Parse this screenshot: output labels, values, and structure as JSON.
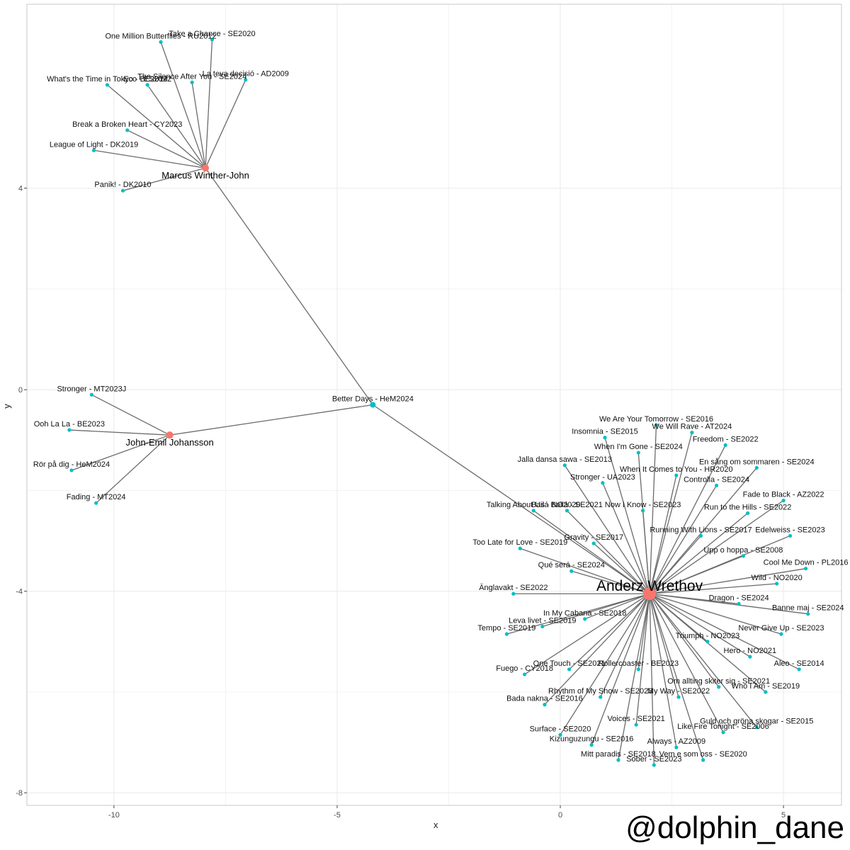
{
  "chart_data": {
    "type": "scatter",
    "xlabel": "x",
    "ylabel": "y",
    "xlim": [
      -11.95,
      6.3
    ],
    "ylim": [
      -8.25,
      7.65
    ],
    "xticks": [
      -10,
      -5,
      0,
      5
    ],
    "yticks": [
      -8,
      -4,
      0,
      4
    ],
    "xtick_labels": [
      "-10",
      "-5",
      "0",
      "5"
    ],
    "ytick_labels": [
      "-8",
      "-4",
      "0",
      "4"
    ],
    "grid": true,
    "colors": {
      "artist": "#f8766d",
      "song": "#00bfc4",
      "edge": "#6b6b6b",
      "grid": "#ebebeb",
      "frame": "#c8c8c8"
    },
    "artists": [
      {
        "id": "marcus",
        "label": "Marcus Winther-John",
        "x": -7.95,
        "y": 4.4,
        "size": "medium"
      },
      {
        "id": "john",
        "label": "John-Emil Johansson",
        "x": -8.75,
        "y": -0.9,
        "size": "medium"
      },
      {
        "id": "anderz",
        "label": "Anderz Wrethov",
        "x": 2.0,
        "y": -4.05,
        "size": "large"
      }
    ],
    "songs": [
      {
        "label": "Take a Chance - SE2020",
        "x": -7.8,
        "y": 6.95,
        "links": [
          "marcus"
        ]
      },
      {
        "label": "One Million Butterflies - RU2012",
        "x": -8.95,
        "y": 6.9,
        "links": [
          "marcus"
        ]
      },
      {
        "label": "The Silence After You - SE2024",
        "x": -8.25,
        "y": 6.1,
        "links": [
          "marcus"
        ]
      },
      {
        "label": "What's the Time in Tokyo - BE2014",
        "x": -10.15,
        "y": 6.05,
        "links": [
          "marcus"
        ]
      },
      {
        "label": "Eco - ES2022",
        "x": -9.25,
        "y": 6.05,
        "links": [
          "marcus"
        ]
      },
      {
        "label": "La teva decisió - AD2009",
        "x": -7.05,
        "y": 6.15,
        "links": [
          "marcus"
        ]
      },
      {
        "label": "Break a Broken Heart - CY2023",
        "x": -9.7,
        "y": 5.15,
        "links": [
          "marcus"
        ]
      },
      {
        "label": "League of Light - DK2019",
        "x": -10.45,
        "y": 4.75,
        "links": [
          "marcus"
        ]
      },
      {
        "label": "Panik! - DK2010",
        "x": -9.8,
        "y": 3.95,
        "links": [
          "marcus"
        ]
      },
      {
        "label": "Better Days - HeM2024",
        "x": -4.2,
        "y": -0.3,
        "links": [
          "marcus",
          "john",
          "anderz"
        ],
        "size": "medium"
      },
      {
        "label": "Stronger - MT2023J",
        "x": -10.5,
        "y": -0.1,
        "links": [
          "john"
        ]
      },
      {
        "label": "Ooh La La - BE2023",
        "x": -11.0,
        "y": -0.8,
        "links": [
          "john"
        ]
      },
      {
        "label": "Rör på dig - HeM2024",
        "x": -10.95,
        "y": -1.6,
        "links": [
          "john"
        ]
      },
      {
        "label": "Fading - MT2024",
        "x": -10.4,
        "y": -2.25,
        "links": [
          "john"
        ]
      },
      {
        "label": "We Are Your Tomorrow - SE2016",
        "x": 2.15,
        "y": -0.7,
        "links": [
          "anderz"
        ]
      },
      {
        "label": "Insomnia - SE2015",
        "x": 1.0,
        "y": -0.95,
        "links": [
          "anderz"
        ]
      },
      {
        "label": "We Will Rave - AT2024",
        "x": 2.95,
        "y": -0.85,
        "links": [
          "anderz"
        ]
      },
      {
        "label": "When I'm Gone - SE2024",
        "x": 1.75,
        "y": -1.25,
        "links": [
          "anderz"
        ]
      },
      {
        "label": "Freedom - SE2022",
        "x": 3.7,
        "y": -1.1,
        "links": [
          "anderz"
        ]
      },
      {
        "label": "Jalla dansa sawa - SE2013",
        "x": 0.1,
        "y": -1.5,
        "links": [
          "anderz"
        ]
      },
      {
        "label": "En sång om sommaren - SE2024",
        "x": 4.4,
        "y": -1.55,
        "links": [
          "anderz"
        ]
      },
      {
        "label": "When It Comes to You - HR2020",
        "x": 2.6,
        "y": -1.7,
        "links": [
          "anderz"
        ]
      },
      {
        "label": "Stronger - UA2023",
        "x": 0.95,
        "y": -1.85,
        "links": [
          "anderz"
        ]
      },
      {
        "label": "Controlla - SE2024",
        "x": 3.5,
        "y": -1.9,
        "links": [
          "anderz"
        ]
      },
      {
        "label": "Fade to Black - AZ2022",
        "x": 5.0,
        "y": -2.2,
        "links": [
          "anderz"
        ]
      },
      {
        "label": "Bailá Bailá - SE2021",
        "x": 0.15,
        "y": -2.4,
        "links": [
          "anderz"
        ]
      },
      {
        "label": "Now I Know - SE2023",
        "x": 1.85,
        "y": -2.4,
        "links": [
          "anderz"
        ]
      },
      {
        "label": "Talking About Us - NO2020",
        "x": -0.6,
        "y": -2.4,
        "links": [
          "anderz"
        ]
      },
      {
        "label": "Run to the Hills - SE2022",
        "x": 4.2,
        "y": -2.45,
        "links": [
          "anderz"
        ]
      },
      {
        "label": "Running With Lions - SE2017",
        "x": 3.15,
        "y": -2.9,
        "links": [
          "anderz"
        ]
      },
      {
        "label": "Gravity - SE2017",
        "x": 0.75,
        "y": -3.05,
        "links": [
          "anderz"
        ]
      },
      {
        "label": "Edelweiss - SE2023",
        "x": 5.15,
        "y": -2.9,
        "links": [
          "anderz"
        ]
      },
      {
        "label": "Too Late for Love - SE2019",
        "x": -0.9,
        "y": -3.15,
        "links": [
          "anderz"
        ]
      },
      {
        "label": "Upp o hoppa - SE2008",
        "x": 4.1,
        "y": -3.3,
        "links": [
          "anderz"
        ]
      },
      {
        "label": "Qué será - SE2024",
        "x": 0.25,
        "y": -3.6,
        "links": [
          "anderz"
        ]
      },
      {
        "label": "Cool Me Down - PL2016",
        "x": 5.5,
        "y": -3.55,
        "links": [
          "anderz"
        ]
      },
      {
        "label": "Wild - NO2020",
        "x": 4.85,
        "y": -3.85,
        "links": [
          "anderz"
        ]
      },
      {
        "label": "Änglavakt - SE2022",
        "x": -1.05,
        "y": -4.05,
        "links": [
          "anderz"
        ]
      },
      {
        "label": "Dragon - SE2024",
        "x": 4.0,
        "y": -4.25,
        "links": [
          "anderz"
        ]
      },
      {
        "label": "Banne maj - SE2024",
        "x": 5.55,
        "y": -4.45,
        "links": [
          "anderz"
        ]
      },
      {
        "label": "In My Cabana - SE2018",
        "x": 0.55,
        "y": -4.55,
        "links": [
          "anderz"
        ]
      },
      {
        "label": "Leva livet - SE2019",
        "x": -0.4,
        "y": -4.7,
        "links": [
          "anderz"
        ]
      },
      {
        "label": "Tempo - SE2019",
        "x": -1.2,
        "y": -4.85,
        "links": [
          "anderz"
        ]
      },
      {
        "label": "Never Give Up - SE2023",
        "x": 4.95,
        "y": -4.85,
        "links": [
          "anderz"
        ]
      },
      {
        "label": "Triumph - NO2023",
        "x": 3.3,
        "y": -5.0,
        "links": [
          "anderz"
        ]
      },
      {
        "label": "Hero - NO2021",
        "x": 4.25,
        "y": -5.3,
        "links": [
          "anderz"
        ]
      },
      {
        "label": "One Touch - SE2021",
        "x": 0.2,
        "y": -5.55,
        "links": [
          "anderz"
        ]
      },
      {
        "label": "Rollercoaster - BE2023",
        "x": 1.75,
        "y": -5.55,
        "links": [
          "anderz"
        ]
      },
      {
        "label": "Aleo - SE2014",
        "x": 5.35,
        "y": -5.55,
        "links": [
          "anderz"
        ]
      },
      {
        "label": "Fuego - CY2018",
        "x": -0.8,
        "y": -5.65,
        "links": [
          "anderz"
        ]
      },
      {
        "label": "Om allting skiter sig - SE2021",
        "x": 3.55,
        "y": -5.9,
        "links": [
          "anderz"
        ]
      },
      {
        "label": "Rhythm of My Show - SE2023",
        "x": 0.9,
        "y": -6.1,
        "links": [
          "anderz"
        ]
      },
      {
        "label": "Who I Am - SE2019",
        "x": 4.6,
        "y": -6.0,
        "links": [
          "anderz"
        ]
      },
      {
        "label": "My Way - SE2022",
        "x": 2.65,
        "y": -6.1,
        "links": [
          "anderz"
        ]
      },
      {
        "label": "Bada nakna - SE2016",
        "x": -0.35,
        "y": -6.25,
        "links": [
          "anderz"
        ]
      },
      {
        "label": "Guld och gröna skogar - SE2015",
        "x": 4.4,
        "y": -6.7,
        "links": [
          "anderz"
        ]
      },
      {
        "label": "Voices - SE2021",
        "x": 1.7,
        "y": -6.65,
        "links": [
          "anderz"
        ]
      },
      {
        "label": "Surface - SE2020",
        "x": 0.0,
        "y": -6.85,
        "links": [
          "anderz"
        ]
      },
      {
        "label": "Like Fire Tonight - SE2006",
        "x": 3.65,
        "y": -6.8,
        "links": [
          "anderz"
        ]
      },
      {
        "label": "Kizunguzungu - SE2016",
        "x": 0.7,
        "y": -7.05,
        "links": [
          "anderz"
        ]
      },
      {
        "label": "Always - AZ2009",
        "x": 2.6,
        "y": -7.1,
        "links": [
          "anderz"
        ]
      },
      {
        "label": "Vem e som oss - SE2020",
        "x": 3.2,
        "y": -7.35,
        "links": [
          "anderz"
        ]
      },
      {
        "label": "Mitt paradis - SE2018",
        "x": 1.3,
        "y": -7.35,
        "links": [
          "anderz"
        ]
      },
      {
        "label": "Sober - SE2023",
        "x": 2.1,
        "y": -7.45,
        "links": [
          "anderz"
        ]
      }
    ]
  },
  "watermark": "@dolphin_dane"
}
